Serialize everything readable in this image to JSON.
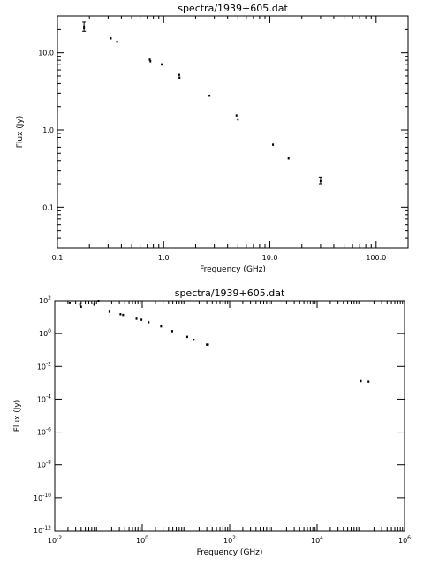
{
  "chart_data": [
    {
      "type": "scatter",
      "title": "spectra/1939+605.dat",
      "xlabel": "Frequency (GHz)",
      "ylabel": "Flux (Jy)",
      "x_scale": "log",
      "y_scale": "log",
      "xlim": [
        0.1,
        200
      ],
      "ylim": [
        0.03,
        30
      ],
      "x_ticks": [
        {
          "value": 0.1,
          "label": "0.1"
        },
        {
          "value": 1,
          "label": "1.0"
        },
        {
          "value": 10,
          "label": "10.0"
        },
        {
          "value": 100,
          "label": "100.0"
        }
      ],
      "y_ticks": [
        {
          "value": 0.1,
          "label": "0.1"
        },
        {
          "value": 1,
          "label": "1.0"
        },
        {
          "value": 10,
          "label": "10.0"
        }
      ],
      "grid": false,
      "points": [
        {
          "x": 0.178,
          "y": 22,
          "err": [
            19,
            25
          ]
        },
        {
          "x": 0.178,
          "y": 21
        },
        {
          "x": 0.318,
          "y": 15.5
        },
        {
          "x": 0.365,
          "y": 14
        },
        {
          "x": 0.74,
          "y": 8.2
        },
        {
          "x": 0.75,
          "y": 7.8
        },
        {
          "x": 0.96,
          "y": 7.1
        },
        {
          "x": 1.4,
          "y": 5.2
        },
        {
          "x": 1.41,
          "y": 4.8
        },
        {
          "x": 2.7,
          "y": 2.8
        },
        {
          "x": 4.85,
          "y": 1.55
        },
        {
          "x": 5.0,
          "y": 1.38
        },
        {
          "x": 10.7,
          "y": 0.65
        },
        {
          "x": 15.0,
          "y": 0.43
        },
        {
          "x": 30.0,
          "y": 0.22,
          "err": [
            0.2,
            0.245
          ]
        }
      ]
    },
    {
      "type": "scatter",
      "title": "spectra/1939+605.dat",
      "xlabel": "Frequency (GHz)",
      "ylabel": "Flux (Jy)",
      "x_scale": "log",
      "y_scale": "log",
      "xlim": [
        0.01,
        1000000
      ],
      "ylim": [
        1e-12,
        100
      ],
      "x_ticks": [
        {
          "value": 0.01,
          "base": "10",
          "exp": "-2"
        },
        {
          "value": 1,
          "base": "10",
          "exp": "0"
        },
        {
          "value": 100,
          "base": "10",
          "exp": "2"
        },
        {
          "value": 10000,
          "base": "10",
          "exp": "4"
        },
        {
          "value": 1000000,
          "base": "10",
          "exp": "6"
        }
      ],
      "y_ticks": [
        {
          "value": 1e-12,
          "base": "10",
          "exp": "-12"
        },
        {
          "value": 1e-10,
          "base": "10",
          "exp": "-10"
        },
        {
          "value": 1e-08,
          "base": "10",
          "exp": "-8"
        },
        {
          "value": 1e-06,
          "base": "10",
          "exp": "-6"
        },
        {
          "value": 0.0001,
          "base": "10",
          "exp": "-4"
        },
        {
          "value": 0.01,
          "base": "10",
          "exp": "-2"
        },
        {
          "value": 1,
          "base": "10",
          "exp": "0"
        },
        {
          "value": 100,
          "base": "10",
          "exp": "2"
        }
      ],
      "grid": false,
      "points": [
        {
          "x": 0.022,
          "y": 75
        },
        {
          "x": 0.038,
          "y": 60
        },
        {
          "x": 0.04,
          "y": 45
        },
        {
          "x": 0.08,
          "y": 60
        },
        {
          "x": 0.1,
          "y": 100
        },
        {
          "x": 0.178,
          "y": 22
        },
        {
          "x": 0.318,
          "y": 15.5
        },
        {
          "x": 0.365,
          "y": 14
        },
        {
          "x": 0.74,
          "y": 8.2
        },
        {
          "x": 0.96,
          "y": 7.1
        },
        {
          "x": 1.4,
          "y": 5.0
        },
        {
          "x": 2.7,
          "y": 2.8
        },
        {
          "x": 4.85,
          "y": 1.45
        },
        {
          "x": 10.7,
          "y": 0.65
        },
        {
          "x": 15.0,
          "y": 0.43
        },
        {
          "x": 30.0,
          "y": 0.22
        },
        {
          "x": 32.0,
          "y": 0.22
        },
        {
          "x": 100000,
          "y": 0.0013
        },
        {
          "x": 150000,
          "y": 0.0012
        }
      ]
    }
  ]
}
